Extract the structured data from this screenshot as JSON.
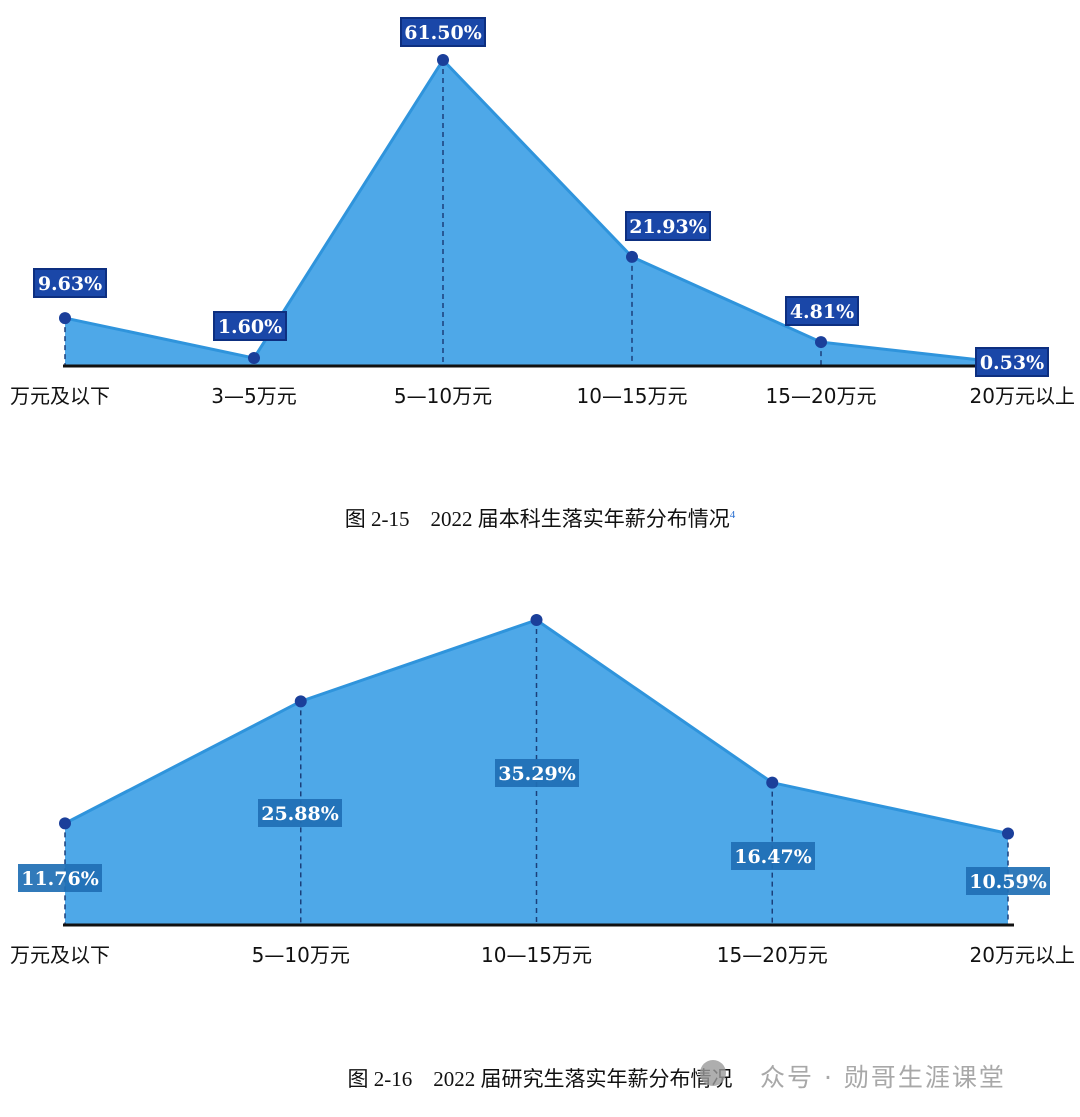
{
  "chart_data": [
    {
      "type": "area",
      "categories": [
        "万元及以下",
        "3—5万元",
        "5—10万元",
        "10—15万元",
        "15—20万元",
        "20万元以上"
      ],
      "values": [
        9.63,
        1.6,
        61.5,
        21.93,
        4.81,
        0.53
      ],
      "data_labels": [
        "9.63%",
        "1.60%",
        "61.50%",
        "21.93%",
        "4.81%",
        "0.53%"
      ],
      "ylim": [
        0,
        61.5
      ],
      "grid": false,
      "colors": {
        "fill": "#4ea8e8",
        "line": "#2f94dc",
        "marker": "#1b3f9a",
        "label_bg": "#1a47a8",
        "label_text": "#ffffff"
      },
      "caption": "图 2-15　2022 届本科生落实年薪分布情况",
      "footnote_mark": "4"
    },
    {
      "type": "area",
      "categories": [
        "万元及以下",
        "5—10万元",
        "10—15万元",
        "15—20万元",
        "20万元以上"
      ],
      "values": [
        11.76,
        25.88,
        35.29,
        16.47,
        10.59
      ],
      "data_labels": [
        "11.76%",
        "25.88%",
        "35.29%",
        "16.47%",
        "10.59%"
      ],
      "ylim": [
        0,
        35.29
      ],
      "grid": false,
      "colors": {
        "fill": "#4ea8e8",
        "line": "#2f94dc",
        "marker": "#1b3f9a",
        "label_bg": "#1f6fb4",
        "label_text": "#ffffff"
      },
      "caption": "图 2-16　2022 届研究生落实年薪分布情况"
    }
  ],
  "watermark": "众号 · 勋哥生涯课堂"
}
